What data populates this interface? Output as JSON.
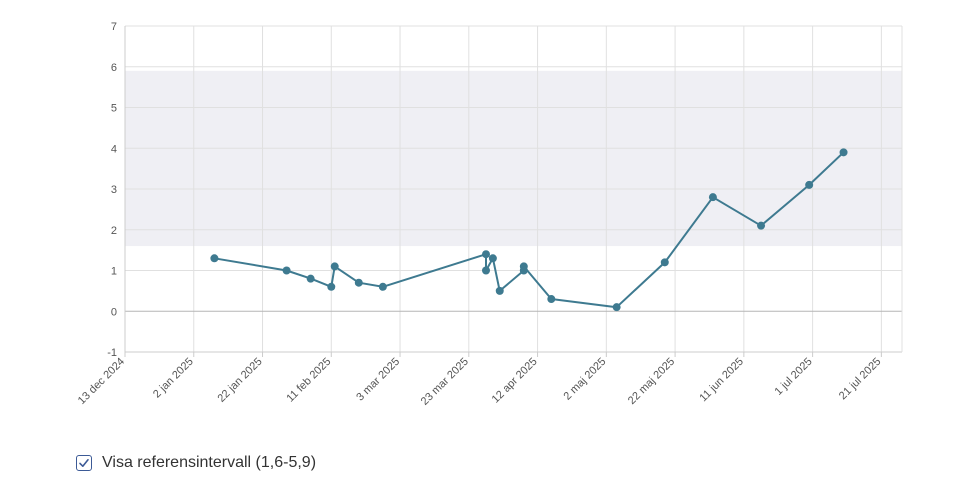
{
  "chart_data": {
    "type": "line",
    "title": "",
    "xlabel": "",
    "ylabel": "",
    "ylim": [
      -1,
      7
    ],
    "yticks": [
      -1,
      0,
      1,
      2,
      3,
      4,
      5,
      6,
      7
    ],
    "xlim": [
      "2024-12-13",
      "2025-07-27"
    ],
    "xticks": [
      {
        "date": "2024-12-13",
        "label": "13 dec 2024"
      },
      {
        "date": "2025-01-02",
        "label": "2 jan 2025"
      },
      {
        "date": "2025-01-22",
        "label": "22 jan 2025"
      },
      {
        "date": "2025-02-11",
        "label": "11 feb 2025"
      },
      {
        "date": "2025-03-03",
        "label": "3 mar 2025"
      },
      {
        "date": "2025-03-23",
        "label": "23 mar 2025"
      },
      {
        "date": "2025-04-12",
        "label": "12 apr 2025"
      },
      {
        "date": "2025-05-02",
        "label": "2 maj 2025"
      },
      {
        "date": "2025-05-22",
        "label": "22 maj 2025"
      },
      {
        "date": "2025-06-11",
        "label": "11 jun 2025"
      },
      {
        "date": "2025-07-01",
        "label": "1 jul 2025"
      },
      {
        "date": "2025-07-21",
        "label": "21 jul 2025"
      }
    ],
    "grid": true,
    "reference_interval": [
      1.6,
      5.9
    ],
    "series": [
      {
        "color": "#3e7a90",
        "points": [
          {
            "x": "2025-01-08",
            "y": 1.3
          },
          {
            "x": "2025-01-29",
            "y": 1.0
          },
          {
            "x": "2025-02-05",
            "y": 0.8
          },
          {
            "x": "2025-02-11",
            "y": 0.6
          },
          {
            "x": "2025-02-12",
            "y": 1.1
          },
          {
            "x": "2025-02-19",
            "y": 0.7
          },
          {
            "x": "2025-02-26",
            "y": 0.6
          },
          {
            "x": "2025-03-28",
            "y": 1.4
          },
          {
            "x": "2025-03-28",
            "y": 1.0
          },
          {
            "x": "2025-03-30",
            "y": 1.3
          },
          {
            "x": "2025-04-01",
            "y": 0.5
          },
          {
            "x": "2025-04-08",
            "y": 1.0
          },
          {
            "x": "2025-04-08",
            "y": 1.1
          },
          {
            "x": "2025-04-16",
            "y": 0.3
          },
          {
            "x": "2025-05-05",
            "y": 0.1
          },
          {
            "x": "2025-05-19",
            "y": 1.2
          },
          {
            "x": "2025-06-02",
            "y": 2.8
          },
          {
            "x": "2025-06-16",
            "y": 2.1
          },
          {
            "x": "2025-06-30",
            "y": 3.1
          },
          {
            "x": "2025-07-10",
            "y": 3.9
          }
        ]
      }
    ]
  },
  "colors": {
    "line": "#3e7a90",
    "marker": "#3e7a90",
    "reference_band": "#efeff4",
    "checkbox_border": "#3c5a96"
  },
  "reference_toggle": {
    "label": "Visa referensintervall (1,6-5,9)",
    "checked": true,
    "icon": "checkmark-icon"
  }
}
